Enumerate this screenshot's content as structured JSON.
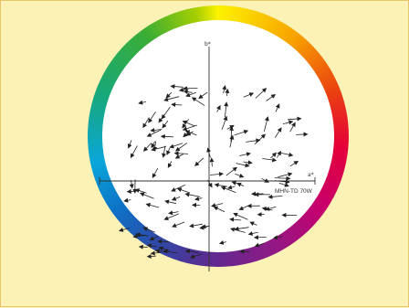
{
  "figure": {
    "b_axis_label": "b*",
    "a_axis_label": "a*",
    "lamp_label": "MHN-TD 70W",
    "ring_colors": [
      "#fdf200",
      "#f7a100",
      "#e5003a",
      "#8e1a86",
      "#2f4aa8",
      "#0aa6d9",
      "#18a879",
      "#a6cf00"
    ],
    "background_color": "#fdf2b6",
    "arrow_color": "#222222"
  }
}
